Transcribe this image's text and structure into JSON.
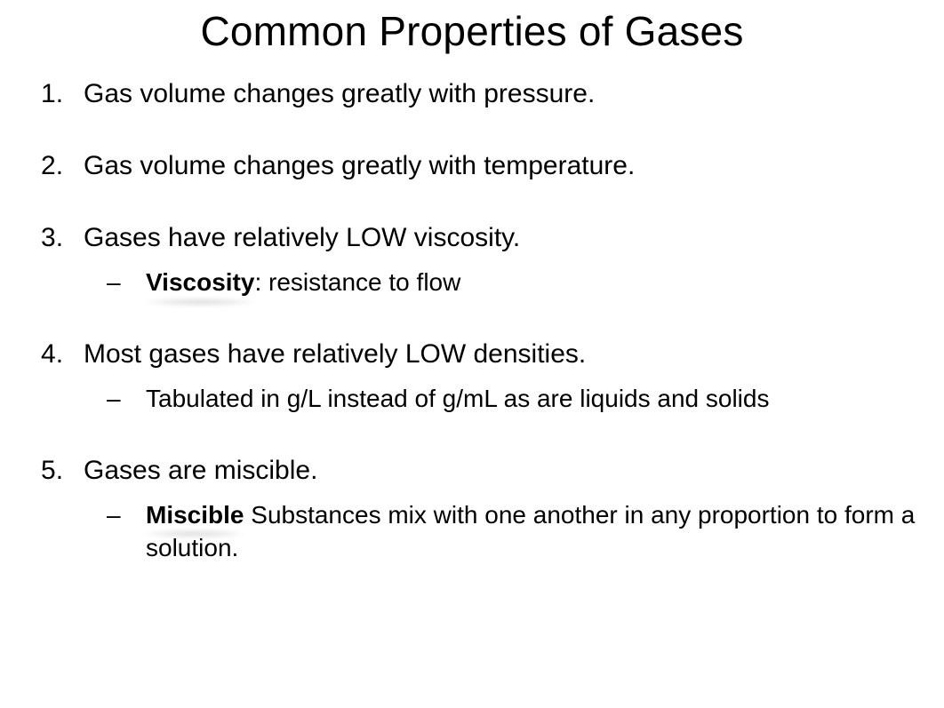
{
  "title": "Common Properties of Gases",
  "title_fontsize": 46,
  "body_fontsize": 30,
  "sub_fontsize": 28,
  "text_color": "#000000",
  "background_color": "#ffffff",
  "items": [
    {
      "text": "Gas volume changes greatly with pressure.",
      "sub": []
    },
    {
      "text": "Gas volume changes greatly with temperature.",
      "sub": []
    },
    {
      "text": "Gases have relatively LOW viscosity.",
      "sub": [
        {
          "term": "Viscosity",
          "term_smudged": true,
          "def": ": resistance to flow"
        }
      ]
    },
    {
      "text": "Most gases have relatively LOW densities.",
      "sub": [
        {
          "term": "",
          "term_smudged": false,
          "def": "Tabulated in g/L instead of g/mL as are liquids and solids"
        }
      ]
    },
    {
      "text": "Gases are miscible.",
      "sub": [
        {
          "term": "Miscible",
          "term_smudged": true,
          "def": " Substances mix with one another in any proportion to form a solution."
        }
      ]
    }
  ]
}
